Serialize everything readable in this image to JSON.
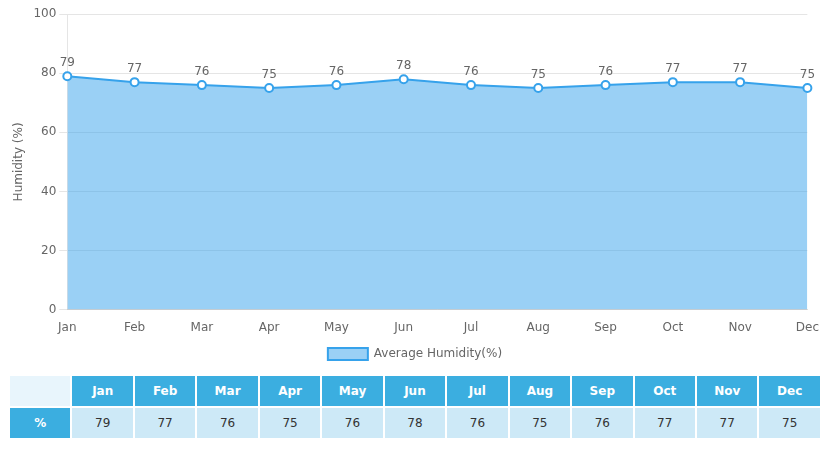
{
  "chart_data": [
    {
      "type": "area",
      "categories": [
        "Jan",
        "Feb",
        "Mar",
        "Apr",
        "May",
        "Jun",
        "Jul",
        "Aug",
        "Sep",
        "Oct",
        "Nov",
        "Dec"
      ],
      "series": [
        {
          "name": "Average Humidity(%)",
          "values": [
            79,
            77,
            76,
            75,
            76,
            78,
            76,
            75,
            76,
            77,
            77,
            75
          ],
          "marker": "circle"
        }
      ],
      "ylabel": "Humidity (%)",
      "ylim": [
        0,
        100
      ],
      "yticks": [
        0,
        20,
        40,
        60,
        80,
        100
      ],
      "grid": true,
      "legend": "bottom",
      "data_labels": true
    },
    {
      "type": "table",
      "categories": [
        "Jan",
        "Feb",
        "Mar",
        "Apr",
        "May",
        "Jun",
        "Jul",
        "Aug",
        "Sep",
        "Oct",
        "Nov",
        "Dec"
      ],
      "series": [
        {
          "name": "%",
          "values": [
            79,
            77,
            76,
            75,
            76,
            78,
            76,
            75,
            76,
            77,
            77,
            75
          ]
        }
      ]
    }
  ]
}
